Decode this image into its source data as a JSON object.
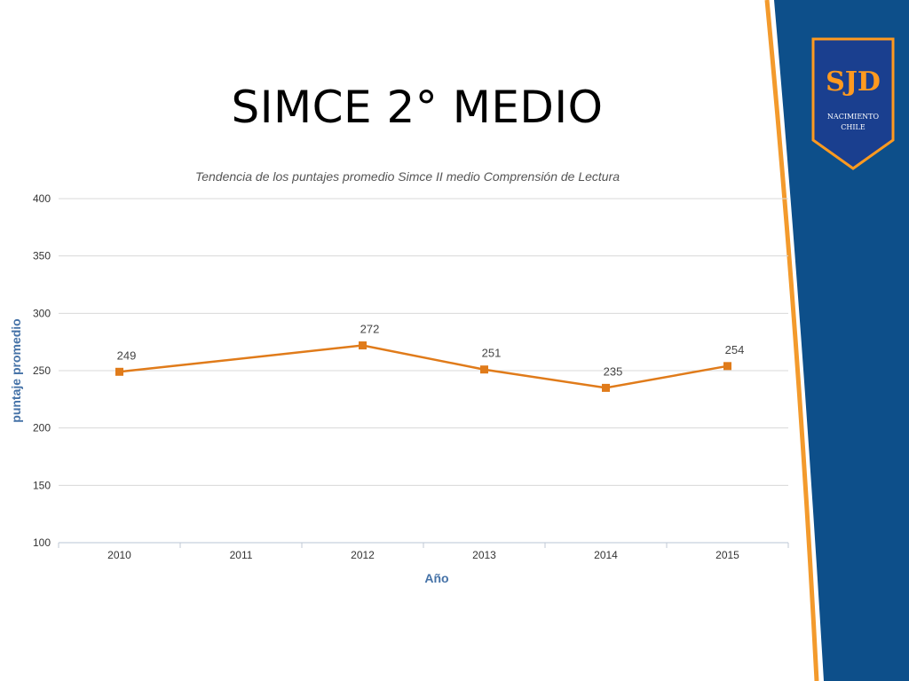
{
  "slide": {
    "title": "SIMCE 2° MEDIO"
  },
  "logo": {
    "initials": "SJD",
    "line1": "NACIMIENTO",
    "line2": "CHILE"
  },
  "colors": {
    "series": "#e07b1a",
    "grid": "#d8d8d8",
    "axis_label": "#4572a7",
    "band_blue": "#0d4f8a",
    "band_orange": "#f39a2c"
  },
  "chart_data": {
    "type": "line",
    "title": "Tendencia de los puntajes promedio Simce II medio Comprensión de Lectura",
    "xlabel": "Año",
    "ylabel": "puntaje promedio",
    "categories": [
      "2010",
      "2011",
      "2012",
      "2013",
      "2014",
      "2015"
    ],
    "yticks": [
      100,
      150,
      200,
      250,
      300,
      350,
      400
    ],
    "ylim": [
      100,
      400
    ],
    "grid": true,
    "legend": "none",
    "series": [
      {
        "points": [
          {
            "x": "2010",
            "y": 249
          },
          {
            "x": "2012",
            "y": 272
          },
          {
            "x": "2013",
            "y": 251
          },
          {
            "x": "2014",
            "y": 235
          },
          {
            "x": "2015",
            "y": 254
          }
        ]
      }
    ]
  }
}
